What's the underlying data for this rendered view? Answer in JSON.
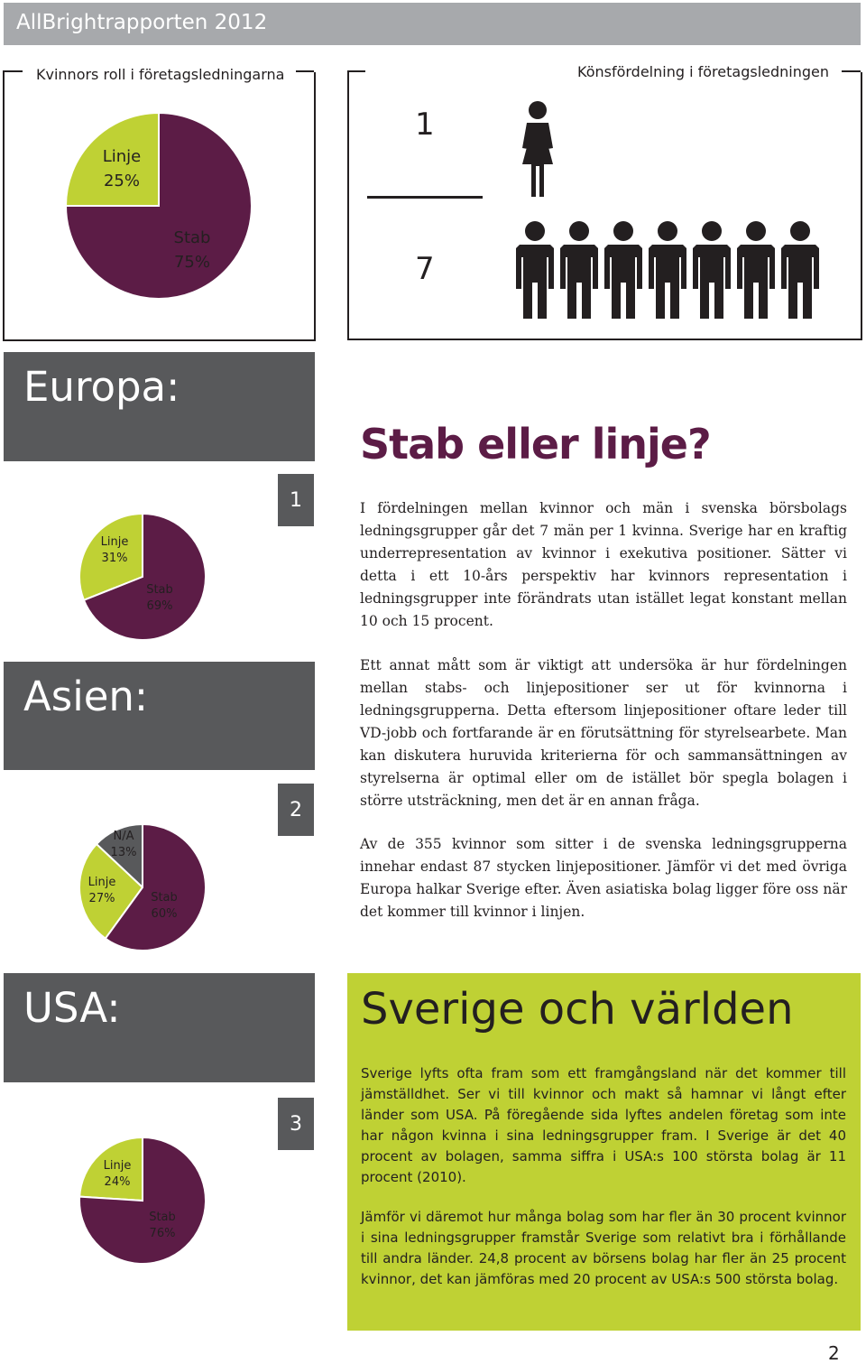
{
  "header": {
    "title": "AllBrightrapporten 2012"
  },
  "panel_left": {
    "title": "Kvinnors roll i företagsledningarna",
    "chart": {
      "label_linje": "Linje",
      "value_linje": "25%",
      "label_stab": "Stab",
      "value_stab": "75%"
    }
  },
  "panel_right": {
    "title": "Könsfördelning i företagsledningen",
    "numerator": "1",
    "denominator": "7"
  },
  "regions": [
    {
      "name": "Europa:",
      "number": "1",
      "chart": {
        "linje_label": "Linje",
        "linje_value": "31%",
        "stab_label": "Stab",
        "stab_value": "69%"
      }
    },
    {
      "name": "Asien:",
      "number": "2",
      "chart": {
        "na_label": "N/A",
        "na_value": "13%",
        "linje_label": "Linje",
        "linje_value": "27%",
        "stab_label": "Stab",
        "stab_value": "60%"
      }
    },
    {
      "name": "USA:",
      "number": "3",
      "chart": {
        "linje_label": "Linje",
        "linje_value": "24%",
        "stab_label": "Stab",
        "stab_value": "76%"
      }
    }
  ],
  "chart_data": [
    {
      "type": "pie",
      "title": "Kvinnors roll i företagsledningarna",
      "categories": [
        "Linje",
        "Stab"
      ],
      "values": [
        25,
        75
      ],
      "colors": [
        "#bfd134",
        "#5c1c46"
      ]
    },
    {
      "type": "pie",
      "title": "Europa:",
      "categories": [
        "Linje",
        "Stab"
      ],
      "values": [
        31,
        69
      ],
      "colors": [
        "#bfd134",
        "#5c1c46"
      ]
    },
    {
      "type": "pie",
      "title": "Asien:",
      "categories": [
        "N/A",
        "Linje",
        "Stab"
      ],
      "values": [
        13,
        27,
        60
      ],
      "colors": [
        "#58595b",
        "#bfd134",
        "#5c1c46"
      ]
    },
    {
      "type": "pie",
      "title": "USA:",
      "categories": [
        "Linje",
        "Stab"
      ],
      "values": [
        24,
        76
      ],
      "colors": [
        "#bfd134",
        "#5c1c46"
      ]
    }
  ],
  "section1": {
    "heading": "Stab eller linje?",
    "paragraphs": [
      "I fördelningen mellan kvinnor och män i svenska börsbolags ledningsgrupper går det 7 män per 1 kvinna. Sverige har en kraftig underrepresentation av kvinnor i exekutiva positioner. Sätter vi detta i ett 10-års perspektiv har kvinnors representation i ledningsgrupper inte förändrats utan istället legat konstant mellan 10 och 15 procent.",
      "Ett annat mått som är viktigt att undersöka är hur fördelningen mellan stabs- och linjepositioner ser ut för kvinnorna i ledningsgrupperna. Detta eftersom linjepositioner oftare leder till VD-jobb och fortfarande är en förutsättning för styrelsearbete. Man kan diskutera huruvida kriterierna för och sammansättningen av styrelserna är optimal eller om de istället bör spegla bolagen i större utsträckning, men det är en annan fråga.",
      "Av de 355 kvinnor som sitter i de svenska ledningsgrupperna innehar endast 87 stycken linjepositioner. Jämför vi det med övriga Europa halkar Sverige efter. Även asiatiska bolag ligger före oss när det kommer till kvinnor i linjen."
    ]
  },
  "section2": {
    "heading": "Sverige och världen",
    "paragraphs": [
      "Sverige lyfts ofta fram som ett framgångsland när det kommer till jämställdhet. Ser vi till kvinnor och makt så hamnar vi långt efter länder som USA. På föregående sida lyftes andelen företag som inte har någon kvinna i sina ledningsgrupper fram. I Sverige är det 40 procent av bolagen, samma siffra i USA:s 100 största bolag är 11 procent (2010).",
      "Jämför vi däremot hur många bolag som har fler än 30 procent kvinnor i sina ledningsgrupper framstår Sverige som relativt bra i förhållande till andra länder. 24,8 procent av börsens bolag har fler än 25 procent kvinnor, det kan jämföras med 20 procent av USA:s 500 största bolag."
    ]
  },
  "colors": {
    "stab": "#5c1c46",
    "linje": "#bfd134",
    "na": "#58595b",
    "band": "#58595b",
    "header": "#a7a9ac"
  },
  "icons": [
    "female-person-icon",
    "male-person-icon"
  ],
  "footer": {
    "page_number": "2"
  }
}
